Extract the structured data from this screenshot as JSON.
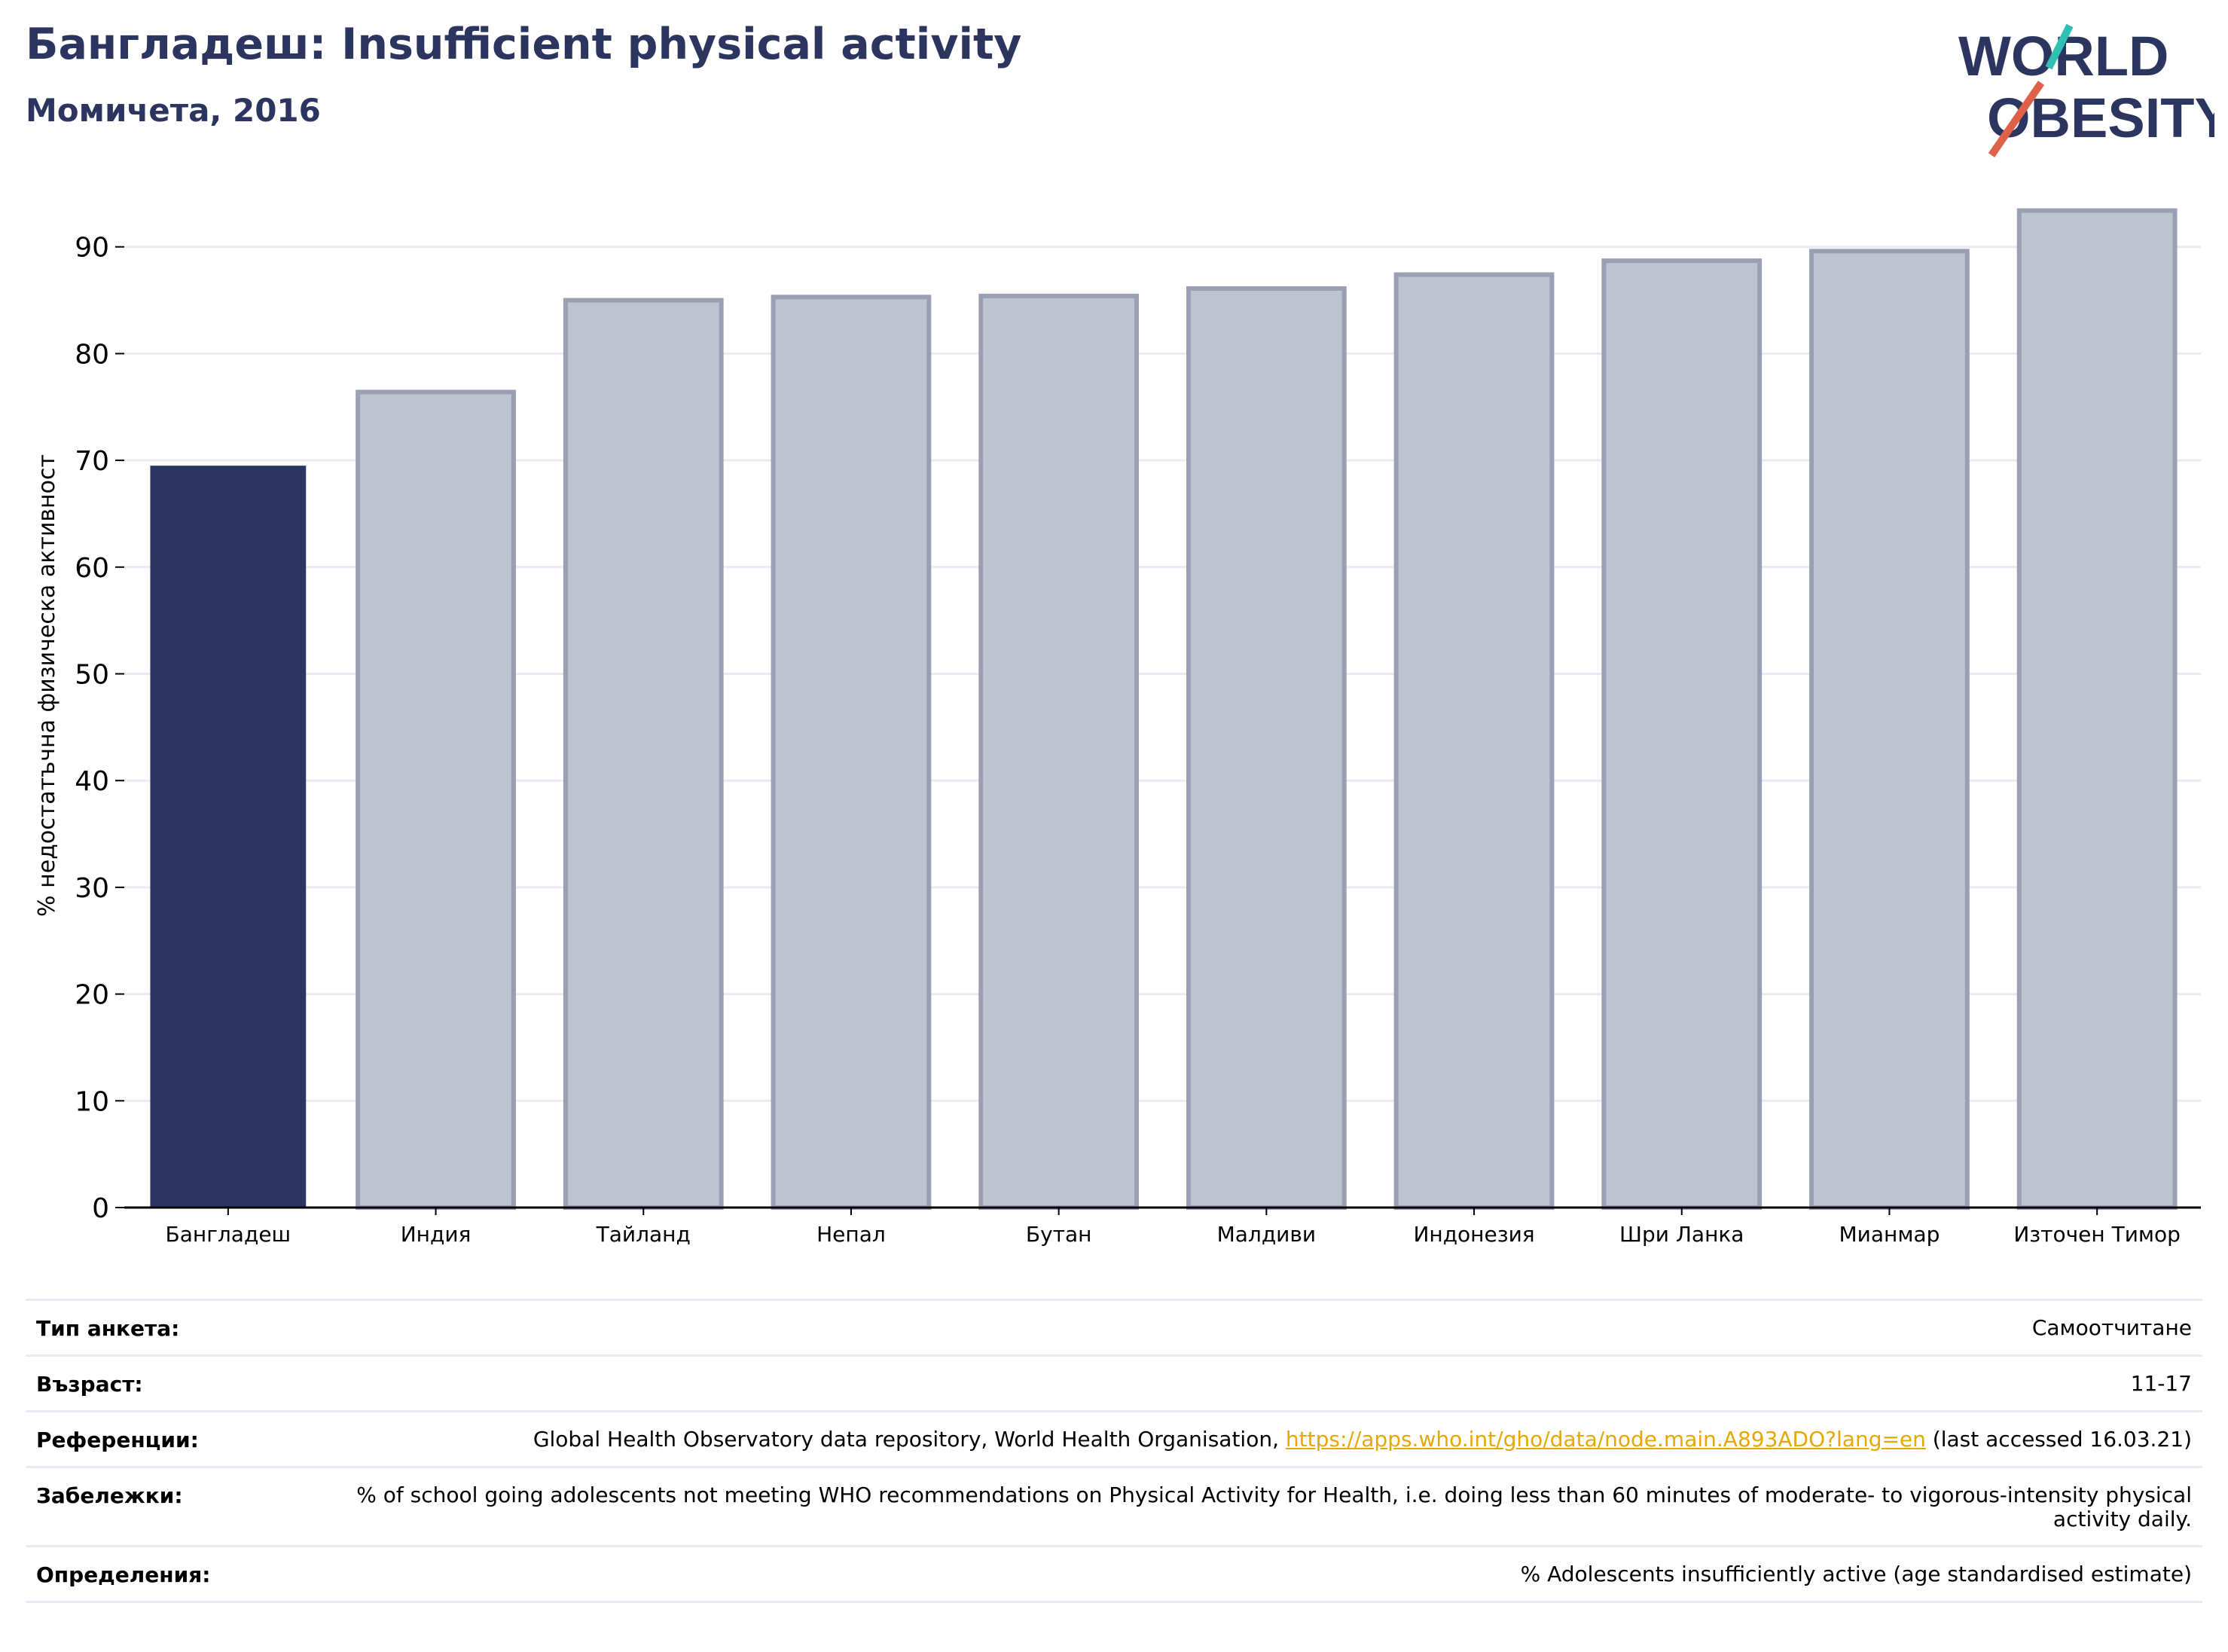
{
  "header": {
    "title": "Бангладеш: Insufficient physical activity",
    "subtitle": "Момичета, 2016"
  },
  "logo": {
    "line1": "WORLD",
    "line2": "OBESITY",
    "colors": {
      "text": "#2b3560",
      "slash_top": "#2fbfb3",
      "slash_bottom": "#e0614a"
    }
  },
  "chart_data": {
    "type": "bar",
    "ylabel": "% недостатъчна физическа активност",
    "ylim": [
      0,
      95
    ],
    "yticks": [
      0,
      10,
      20,
      30,
      40,
      50,
      60,
      70,
      80,
      90
    ],
    "grid": true,
    "categories": [
      "Бангладеш",
      "Индия",
      "Тайланд",
      "Непал",
      "Бутан",
      "Малдиви",
      "Индонезия",
      "Шри Ланка",
      "Мианмар",
      "Източен Тимор"
    ],
    "values": [
      69.5,
      76.4,
      85.0,
      85.3,
      85.4,
      86.1,
      87.4,
      88.7,
      89.6,
      93.4
    ],
    "highlight_index": 0,
    "colors": {
      "highlight": "#2b3560",
      "other_fill": "#bfc2cf",
      "other_stroke": "#9a9fb4",
      "grid": "#e8ecf2",
      "axis": "#000000"
    }
  },
  "meta": {
    "rows": [
      {
        "label": "Тип анкета:",
        "value": "Самоотчитане"
      },
      {
        "label": "Възраст:",
        "value": "11-17"
      },
      {
        "label": "Референции:",
        "value_before": "Global Health Observatory data repository, World Health Organisation, ",
        "link": "https://apps.who.int/gho/data/node.main.A893ADO?lang=en",
        "value_after": " (last accessed 16.03.21)"
      },
      {
        "label": "Забележки:",
        "value": "% of school going adolescents not meeting WHO recommendations on Physical Activity for Health, i.e. doing less than 60 minutes of moderate- to vigorous-intensity physical activity daily."
      },
      {
        "label": "Определения:",
        "value": "% Adolescents insufficiently active (age standardised estimate)"
      }
    ]
  }
}
